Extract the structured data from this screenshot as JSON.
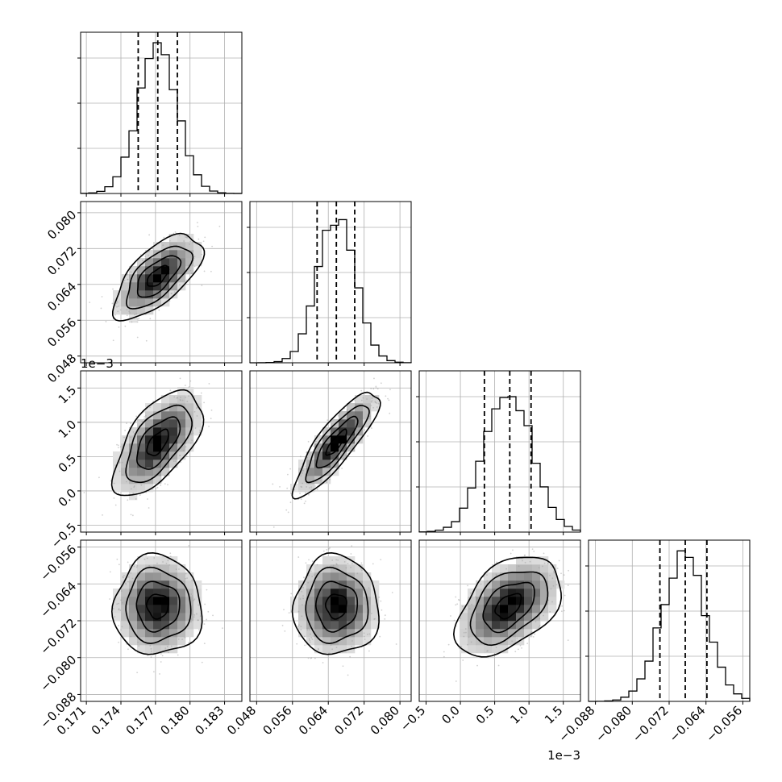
{
  "chart_data": {
    "type": "corner",
    "title": "",
    "parameters": [
      {
        "index": 0,
        "label": "",
        "range": [
          0.1705,
          0.1845
        ],
        "ticks": [
          0.171,
          0.174,
          0.177,
          0.18,
          0.183
        ],
        "tick_labels": [
          "0.171",
          "0.174",
          "0.177",
          "0.180",
          "0.183"
        ],
        "offset_text": "",
        "quantiles": [
          0.1755,
          0.1772,
          0.1789
        ],
        "mean": 0.1772,
        "std": 0.0017
      },
      {
        "index": 1,
        "label": "",
        "range": [
          0.0465,
          0.0825
        ],
        "ticks": [
          0.048,
          0.056,
          0.064,
          0.072,
          0.08
        ],
        "tick_labels": [
          "0.048",
          "0.056",
          "0.064",
          "0.072",
          "0.080"
        ],
        "offset_text": "",
        "quantiles": [
          0.0615,
          0.0658,
          0.0699
        ],
        "mean": 0.0658,
        "std": 0.0042
      },
      {
        "index": 2,
        "label": "",
        "range": [
          -0.6,
          1.75
        ],
        "ticks": [
          -0.5,
          0.0,
          0.5,
          1.0,
          1.5
        ],
        "tick_labels": [
          "−0.5",
          "0.0",
          "0.5",
          "1.0",
          "1.5"
        ],
        "offset_text": "1e−3",
        "quantiles": [
          0.35,
          0.72,
          1.03
        ],
        "mean": 0.7,
        "std": 0.34
      },
      {
        "index": 3,
        "label": "",
        "range": [
          -0.0895,
          -0.0545
        ],
        "ticks": [
          -0.088,
          -0.08,
          -0.072,
          -0.064,
          -0.056
        ],
        "tick_labels": [
          "−0.088",
          "−0.080",
          "−0.072",
          "−0.064",
          "−0.056"
        ],
        "offset_text": "",
        "quantiles": [
          -0.074,
          -0.0685,
          -0.0638
        ],
        "mean": -0.0688,
        "std": 0.0048
      }
    ],
    "correlations": [
      {
        "pair": [
          0,
          1
        ],
        "rho": 0.65
      },
      {
        "pair": [
          0,
          2
        ],
        "rho": 0.6
      },
      {
        "pair": [
          1,
          2
        ],
        "rho": 0.85
      },
      {
        "pair": [
          0,
          3
        ],
        "rho": 0.0
      },
      {
        "pair": [
          1,
          3
        ],
        "rho": 0.0
      },
      {
        "pair": [
          2,
          3
        ],
        "rho": 0.45
      }
    ],
    "diagonal": "1D histograms with dashed quantile lines (16%, 50%, 84%)",
    "off_diagonal": "2D histograms with scatter points and density contours",
    "grid": true
  }
}
